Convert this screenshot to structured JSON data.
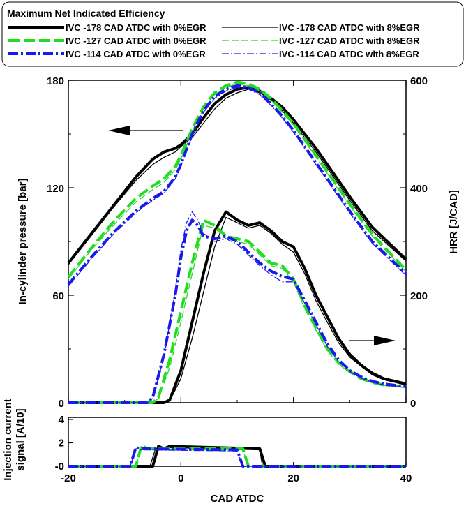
{
  "chart_data": [
    {
      "type": "line",
      "title": "",
      "xlabel": "CAD ATDC",
      "xlim": [
        -20,
        40
      ],
      "x_ticks": [
        -20,
        0,
        20,
        40
      ],
      "ylabel_left": "In-cylinder pressure [bar]",
      "ylim_left": [
        0,
        180
      ],
      "y_ticks_left": [
        0,
        60,
        120,
        180
      ],
      "ylabel_right": "HRR [J/CAD]",
      "ylim_right": [
        0,
        600
      ],
      "y_ticks_right": [
        0,
        200,
        400,
        600
      ],
      "grid": false,
      "legend": {
        "title": "Maximum Net Indicated Efficiency",
        "placement": "top",
        "entries": [
          {
            "label": "IVC -178 CAD ATDC with 0%EGR",
            "color": "#000000",
            "style": "solid-thick"
          },
          {
            "label": "IVC -178 CAD ATDC with 8%EGR",
            "color": "#000000",
            "style": "solid-thin"
          },
          {
            "label": "IVC -127 CAD ATDC with 0%EGR",
            "color": "#22dd22",
            "style": "dash-thick"
          },
          {
            "label": "IVC -127 CAD ATDC with 8%EGR",
            "color": "#22dd22",
            "style": "dash-thin"
          },
          {
            "label": "IVC -114 CAD ATDC with 0%EGR",
            "color": "#1a1aee",
            "style": "dashdot-thick"
          },
          {
            "label": "IVC -114 CAD ATDC with 8%EGR",
            "color": "#1a1aee",
            "style": "dashdot-thin"
          }
        ]
      },
      "pressure_series": [
        {
          "name": "IVC -178 CAD ATDC with 0%EGR",
          "axis": "left",
          "x": [
            -20,
            -16,
            -12,
            -8,
            -5,
            -3,
            -1,
            0,
            2,
            4,
            6,
            8,
            10,
            12,
            14,
            16,
            18,
            20,
            22,
            24,
            26,
            28,
            30,
            34,
            40
          ],
          "y": [
            78,
            94,
            110,
            126,
            136,
            140,
            142,
            144,
            150,
            159,
            167,
            172,
            175,
            176,
            174,
            170,
            165,
            158,
            150,
            142,
            133,
            124,
            115,
            98,
            80
          ]
        },
        {
          "name": "IVC -178 CAD ATDC with 8%EGR",
          "axis": "left",
          "x": [
            -20,
            -16,
            -12,
            -8,
            -5,
            -3,
            -1,
            0,
            2,
            4,
            6,
            8,
            10,
            12,
            14,
            16,
            18,
            20,
            22,
            24,
            26,
            28,
            30,
            34,
            40
          ],
          "y": [
            77,
            93,
            109,
            124,
            133,
            137,
            140,
            143,
            148,
            156,
            164,
            170,
            173,
            175,
            173,
            169,
            163,
            156,
            148,
            140,
            131,
            122,
            113,
            96,
            79
          ]
        },
        {
          "name": "IVC -127 CAD ATDC with 0%EGR",
          "axis": "left",
          "x": [
            -20,
            -16,
            -12,
            -8,
            -5,
            -3,
            -1,
            0,
            2,
            4,
            6,
            8,
            10,
            12,
            14,
            16,
            18,
            20,
            22,
            24,
            26,
            28,
            30,
            34,
            40
          ],
          "y": [
            70,
            86,
            101,
            114,
            121,
            125,
            132,
            138,
            153,
            165,
            173,
            177,
            179,
            178,
            175,
            170,
            163,
            156,
            147,
            138,
            129,
            120,
            111,
            94,
            74
          ]
        },
        {
          "name": "IVC -127 CAD ATDC with 8%EGR",
          "axis": "left",
          "x": [
            -20,
            -16,
            -12,
            -8,
            -5,
            -3,
            -1,
            0,
            2,
            4,
            6,
            8,
            10,
            12,
            14,
            16,
            18,
            20,
            22,
            24,
            26,
            28,
            30,
            34,
            40
          ],
          "y": [
            69,
            85,
            99,
            112,
            119,
            123,
            130,
            136,
            151,
            164,
            172,
            176,
            178,
            177,
            174,
            169,
            162,
            155,
            146,
            137,
            128,
            119,
            110,
            93,
            73
          ]
        },
        {
          "name": "IVC -114 CAD ATDC with 0%EGR",
          "axis": "left",
          "x": [
            -20,
            -16,
            -12,
            -8,
            -5,
            -3,
            -1,
            0,
            2,
            4,
            6,
            8,
            10,
            12,
            14,
            16,
            18,
            20,
            22,
            24,
            26,
            28,
            30,
            34,
            40
          ],
          "y": [
            66,
            81,
            95,
            107,
            114,
            118,
            126,
            133,
            150,
            163,
            171,
            175,
            177,
            176,
            173,
            167,
            160,
            152,
            143,
            134,
            125,
            116,
            107,
            90,
            72
          ]
        },
        {
          "name": "IVC -114 CAD ATDC with 8%EGR",
          "axis": "left",
          "x": [
            -20,
            -16,
            -12,
            -8,
            -5,
            -3,
            -1,
            0,
            2,
            4,
            6,
            8,
            10,
            12,
            14,
            16,
            18,
            20,
            22,
            24,
            26,
            28,
            30,
            34,
            40
          ],
          "y": [
            65,
            80,
            94,
            106,
            113,
            117,
            125,
            132,
            149,
            162,
            170,
            174,
            176,
            175,
            172,
            166,
            159,
            151,
            142,
            133,
            124,
            115,
            106,
            89,
            71
          ]
        }
      ],
      "hrr_series": [
        {
          "name": "IVC -178 CAD ATDC with 0%EGR",
          "axis": "right",
          "x": [
            -20,
            -3,
            -2,
            0,
            2,
            4,
            6,
            8,
            10,
            12,
            14,
            16,
            18,
            20,
            22,
            24,
            26,
            28,
            30,
            32,
            34,
            36,
            40
          ],
          "y": [
            0,
            0,
            5,
            60,
            150,
            240,
            320,
            355,
            340,
            330,
            335,
            320,
            300,
            290,
            250,
            200,
            160,
            120,
            90,
            70,
            55,
            45,
            35
          ]
        },
        {
          "name": "IVC -178 CAD ATDC with 8%EGR",
          "axis": "right",
          "x": [
            -20,
            -3,
            -2,
            0,
            2,
            4,
            6,
            8,
            10,
            12,
            14,
            16,
            18,
            20,
            22,
            24,
            26,
            28,
            30,
            32,
            34,
            36,
            40
          ],
          "y": [
            0,
            0,
            3,
            45,
            120,
            205,
            290,
            345,
            335,
            325,
            330,
            315,
            295,
            280,
            240,
            190,
            150,
            112,
            85,
            68,
            52,
            43,
            33
          ]
        },
        {
          "name": "IVC -127 CAD ATDC with 0%EGR",
          "axis": "right",
          "x": [
            -20,
            -5,
            -4,
            -2,
            0,
            2,
            4,
            6,
            8,
            10,
            12,
            14,
            16,
            18,
            20,
            22,
            24,
            26,
            28,
            30,
            32,
            34,
            36,
            40
          ],
          "y": [
            0,
            0,
            10,
            80,
            170,
            260,
            340,
            330,
            310,
            305,
            300,
            280,
            260,
            255,
            230,
            180,
            140,
            100,
            75,
            58,
            45,
            38,
            33,
            30
          ]
        },
        {
          "name": "IVC -127 CAD ATDC with 8%EGR",
          "axis": "right",
          "x": [
            -20,
            -5,
            -4,
            -2,
            0,
            2,
            4,
            6,
            8,
            10,
            12,
            14,
            16,
            18,
            20,
            22,
            24,
            26,
            28,
            30,
            32,
            34,
            36,
            40
          ],
          "y": [
            0,
            0,
            8,
            65,
            150,
            240,
            330,
            325,
            305,
            300,
            295,
            275,
            255,
            250,
            225,
            175,
            135,
            97,
            72,
            56,
            44,
            37,
            32,
            29
          ]
        },
        {
          "name": "IVC -114 CAD ATDC with 0%EGR",
          "axis": "right",
          "x": [
            -20,
            -6,
            -5,
            -3,
            -1,
            0,
            1,
            2,
            3,
            4,
            6,
            8,
            10,
            12,
            14,
            16,
            18,
            20,
            22,
            24,
            26,
            28,
            30,
            32,
            34,
            36,
            40
          ],
          "y": [
            0,
            0,
            10,
            90,
            200,
            270,
            320,
            340,
            330,
            310,
            305,
            310,
            300,
            280,
            260,
            245,
            235,
            230,
            190,
            150,
            110,
            80,
            60,
            48,
            40,
            35,
            30
          ]
        },
        {
          "name": "IVC -114 CAD ATDC with 8%EGR",
          "axis": "right",
          "x": [
            -20,
            -6,
            -5,
            -3,
            -1,
            0,
            1,
            2,
            3,
            4,
            6,
            8,
            10,
            12,
            14,
            16,
            18,
            20,
            22,
            24,
            26,
            28,
            30,
            32,
            34,
            36,
            40
          ],
          "y": [
            0,
            0,
            8,
            85,
            210,
            285,
            335,
            355,
            340,
            315,
            300,
            305,
            295,
            275,
            255,
            238,
            225,
            225,
            185,
            145,
            105,
            77,
            58,
            46,
            38,
            33,
            28
          ]
        }
      ],
      "annotations": [
        "arrow-left toward pressure axis",
        "arrow-right toward HRR axis"
      ]
    },
    {
      "type": "line",
      "xlabel": "CAD ATDC",
      "ylabel": "Injection current signal [A/10]",
      "xlim": [
        -20,
        40
      ],
      "ylim": [
        0,
        4
      ],
      "y_tick_labels": [
        "-0",
        "2",
        "4"
      ],
      "series": [
        {
          "name": "IVC -178 CAD ATDC with 0%EGR",
          "x": [
            -20,
            -5,
            -4,
            -3,
            -2,
            14,
            15,
            40
          ],
          "y": [
            0,
            0,
            1.7,
            1.5,
            1.7,
            1.5,
            0,
            0
          ]
        },
        {
          "name": "IVC -178 CAD ATDC with 8%EGR",
          "x": [
            -20,
            -5.5,
            -4.5,
            -3,
            14,
            14.5,
            40
          ],
          "y": [
            0,
            0,
            1.5,
            1.6,
            1.4,
            0,
            0
          ]
        },
        {
          "name": "IVC -127 CAD ATDC with 0%EGR",
          "x": [
            -20,
            -8,
            -7,
            -6,
            11,
            12,
            40
          ],
          "y": [
            0,
            0,
            1.8,
            1.5,
            1.5,
            0,
            0
          ]
        },
        {
          "name": "IVC -127 CAD ATDC with 8%EGR",
          "x": [
            -20,
            -8,
            -7,
            -6,
            11,
            12,
            40
          ],
          "y": [
            0,
            0,
            1.7,
            1.4,
            1.4,
            0,
            0
          ]
        },
        {
          "name": "IVC -114 CAD ATDC with 0%EGR",
          "x": [
            -20,
            -9,
            -8,
            -7,
            10,
            11,
            40
          ],
          "y": [
            0,
            0,
            1.6,
            1.5,
            1.4,
            0,
            0
          ]
        },
        {
          "name": "IVC -114 CAD ATDC with 8%EGR",
          "x": [
            -20,
            -9,
            -8,
            -7,
            10,
            11,
            40
          ],
          "y": [
            0,
            0,
            1.5,
            1.4,
            1.3,
            0,
            0
          ]
        }
      ]
    }
  ]
}
